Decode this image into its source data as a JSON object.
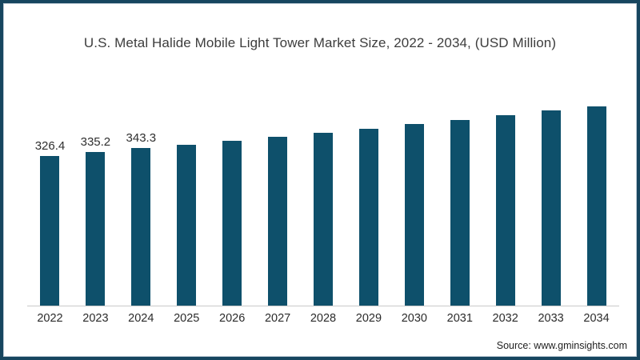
{
  "frame": {
    "border_color": "#17465f",
    "background": "#ffffff"
  },
  "source": "Source: www.gminsights.com",
  "chart_data": {
    "type": "bar",
    "title": "U.S. Metal Halide Mobile Light Tower Market Size, 2022 - 2034, (USD Million)",
    "xlabel": "",
    "ylabel": "",
    "categories": [
      "2022",
      "2023",
      "2024",
      "2025",
      "2026",
      "2027",
      "2028",
      "2029",
      "2030",
      "2031",
      "2032",
      "2033",
      "2034"
    ],
    "values": [
      326.4,
      335.2,
      343.3,
      351.5,
      360.0,
      368.6,
      377.5,
      386.5,
      395.8,
      405.3,
      415.0,
      425.0,
      435.2
    ],
    "data_labels": [
      "326.4",
      "335.2",
      "343.3",
      "",
      "",
      "",
      "",
      "",
      "",
      "",
      "",
      "",
      ""
    ],
    "bar_color": "#0e506b",
    "axis_line_color": "#c9c9c9",
    "text_color": "#3d3d3d",
    "ylim": [
      0,
      492
    ],
    "grid": false,
    "legend": false
  }
}
